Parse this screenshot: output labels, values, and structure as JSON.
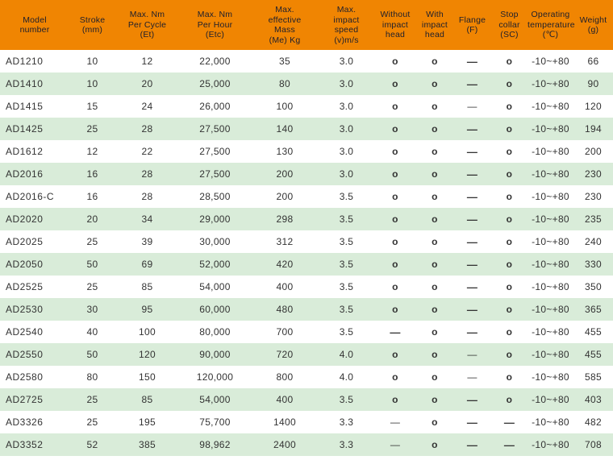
{
  "table": {
    "columns": [
      {
        "id": "model",
        "label": "Model\nnumber"
      },
      {
        "id": "stroke",
        "label": "Stroke\n(mm)"
      },
      {
        "id": "max-nm-per-cycle",
        "label": "Max. Nm\nPer Cycle\n(Et)"
      },
      {
        "id": "max-nm-per-hour",
        "label": "Max. Nm\nPer Hour\n(Etc)"
      },
      {
        "id": "max-effective-mass",
        "label": "Max.\neffective\nMass\n(Me) Kg"
      },
      {
        "id": "max-impact-speed",
        "label": "Max.\nimpact\nspeed\n(v)m/s"
      },
      {
        "id": "without-impact-head",
        "label": "Without\nimpact\nhead"
      },
      {
        "id": "with-impact-head",
        "label": "With\nimpact\nhead"
      },
      {
        "id": "flange",
        "label": "Flange\n(F)"
      },
      {
        "id": "stop-collar",
        "label": "Stop\ncollar\n(SC)"
      },
      {
        "id": "operating-temperature",
        "label": "Operating\ntemperature\n(℃)"
      },
      {
        "id": "weight",
        "label": "Weight\n(g)"
      }
    ],
    "rows": [
      [
        "AD1210",
        "10",
        "12",
        "22,000",
        "35",
        "3.0",
        "o",
        "o",
        "—",
        "o",
        "-10~+80",
        "66"
      ],
      [
        "AD1410",
        "10",
        "20",
        "25,000",
        "80",
        "3.0",
        "o",
        "o",
        "—",
        "o",
        "-10~+80",
        "90"
      ],
      [
        "AD1415",
        "15",
        "24",
        "26,000",
        "100",
        "3.0",
        "o",
        "o",
        "—",
        "o",
        "-10~+80",
        "120"
      ],
      [
        "AD1425",
        "25",
        "28",
        "27,500",
        "140",
        "3.0",
        "o",
        "o",
        "—",
        "o",
        "-10~+80",
        "194"
      ],
      [
        "AD1612",
        "12",
        "22",
        "27,500",
        "130",
        "3.0",
        "o",
        "o",
        "—",
        "o",
        "-10~+80",
        "200"
      ],
      [
        "AD2016",
        "16",
        "28",
        "27,500",
        "200",
        "3.0",
        "o",
        "o",
        "—",
        "o",
        "-10~+80",
        "230"
      ],
      [
        "AD2016-C",
        "16",
        "28",
        "28,500",
        "200",
        "3.5",
        "o",
        "o",
        "—",
        "o",
        "-10~+80",
        "230"
      ],
      [
        "AD2020",
        "20",
        "34",
        "29,000",
        "298",
        "3.5",
        "o",
        "o",
        "—",
        "o",
        "-10~+80",
        "235"
      ],
      [
        "AD2025",
        "25",
        "39",
        "30,000",
        "312",
        "3.5",
        "o",
        "o",
        "—",
        "o",
        "-10~+80",
        "240"
      ],
      [
        "AD2050",
        "50",
        "69",
        "52,000",
        "420",
        "3.5",
        "o",
        "o",
        "—",
        "o",
        "-10~+80",
        "330"
      ],
      [
        "AD2525",
        "25",
        "85",
        "54,000",
        "400",
        "3.5",
        "o",
        "o",
        "—",
        "o",
        "-10~+80",
        "350"
      ],
      [
        "AD2530",
        "30",
        "95",
        "60,000",
        "480",
        "3.5",
        "o",
        "o",
        "—",
        "o",
        "-10~+80",
        "365"
      ],
      [
        "AD2540",
        "40",
        "100",
        "80,000",
        "700",
        "3.5",
        "—",
        "o",
        "—",
        "o",
        "-10~+80",
        "455"
      ],
      [
        "AD2550",
        "50",
        "120",
        "90,000",
        "720",
        "4.0",
        "o",
        "o",
        "—",
        "o",
        "-10~+80",
        "455"
      ],
      [
        "AD2580",
        "80",
        "150",
        "120,000",
        "800",
        "4.0",
        "o",
        "o",
        "—",
        "o",
        "-10~+80",
        "585"
      ],
      [
        "AD2725",
        "25",
        "85",
        "54,000",
        "400",
        "3.5",
        "o",
        "o",
        "—",
        "o",
        "-10~+80",
        "403"
      ],
      [
        "AD3326",
        "25",
        "195",
        "75,700",
        "1400",
        "3.3",
        "—",
        "o",
        "—",
        "—",
        "-10~+80",
        "482"
      ],
      [
        "AD3352",
        "52",
        "385",
        "98,962",
        "2400",
        "3.3",
        "—",
        "o",
        "—",
        "—",
        "-10~+80",
        "708"
      ]
    ],
    "thin_dash_cells": [
      [
        2,
        8
      ],
      [
        13,
        8
      ],
      [
        14,
        8
      ],
      [
        16,
        6
      ],
      [
        17,
        6
      ]
    ],
    "symbols": {
      "available": "o",
      "not_available": "—"
    }
  },
  "colors": {
    "header_bg": "#F08502",
    "header_text": "#20202C",
    "row_bg": "#FFFFFF",
    "row_alt_bg": "#D9ECD9",
    "body_text": "#333333"
  }
}
